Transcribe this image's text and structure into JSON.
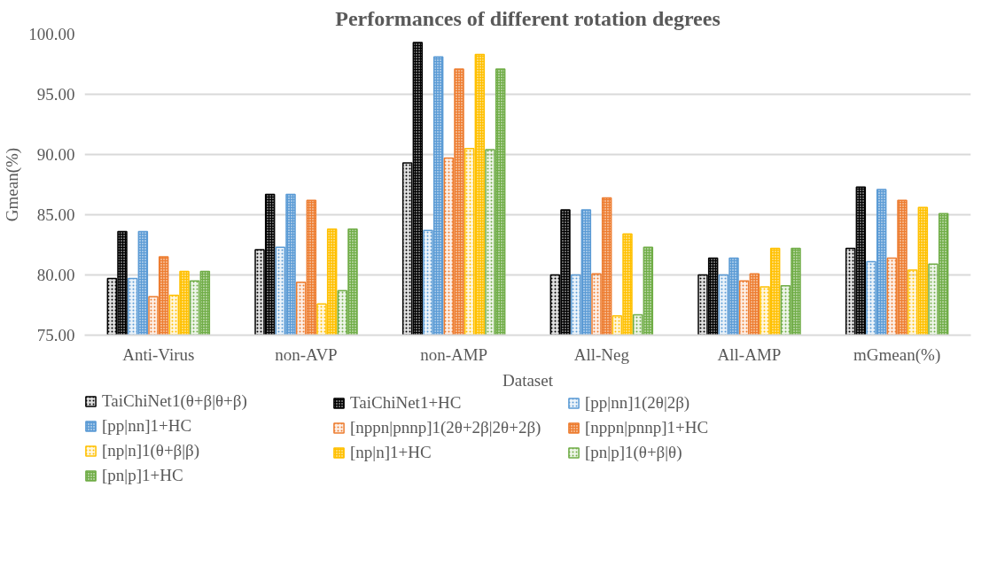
{
  "chart_data": {
    "type": "bar",
    "title": "Performances of different rotation degrees",
    "xlabel": "Dataset",
    "ylabel": "Gmean(%)",
    "categories": [
      "Anti-Virus",
      "non-AVP",
      "non-AMP",
      "All-Neg",
      "All-AMP",
      "mGmean(%)"
    ],
    "ylim": [
      75,
      100
    ],
    "yticks": [
      {
        "value": 75,
        "label": "75.00"
      },
      {
        "value": 80,
        "label": "80.00"
      },
      {
        "value": 85,
        "label": "85.00"
      },
      {
        "value": 90,
        "label": "90.00"
      },
      {
        "value": 95,
        "label": "95.00"
      },
      {
        "value": 100,
        "label": "100.00"
      }
    ],
    "grid": "y",
    "legend": "bottom",
    "series": [
      {
        "name": "TaiChiNet1(θ+β|θ+β)",
        "color": "#000000",
        "values": [
          79.7,
          82.1,
          89.3,
          80.0,
          80.0,
          82.2
        ]
      },
      {
        "name": "TaiChiNet1+HC",
        "color": "#000000",
        "values": [
          83.6,
          86.7,
          99.3,
          85.4,
          81.4,
          87.3
        ]
      },
      {
        "name": "[pp|nn]1(2θ|2β)",
        "color": "#5b9bd5",
        "values": [
          79.7,
          82.3,
          83.7,
          80.0,
          80.0,
          81.1
        ]
      },
      {
        "name": "[pp|nn]1+HC",
        "color": "#5b9bd5",
        "values": [
          83.6,
          86.7,
          98.1,
          85.4,
          81.4,
          87.1
        ]
      },
      {
        "name": "[nppn|pnnp]1(2θ+2β|2θ+2β)",
        "color": "#ed7d31",
        "values": [
          78.2,
          79.4,
          89.7,
          80.1,
          79.5,
          81.4
        ]
      },
      {
        "name": "[nppn|pnnp]1+HC",
        "color": "#ed7d31",
        "values": [
          81.5,
          86.2,
          97.1,
          86.4,
          80.1,
          86.2
        ]
      },
      {
        "name": "[np|n]1(θ+β|β)",
        "color": "#ffc000",
        "values": [
          78.3,
          77.6,
          90.5,
          76.6,
          79.0,
          80.4
        ]
      },
      {
        "name": "[np|n]1+HC",
        "color": "#ffc000",
        "values": [
          80.3,
          83.8,
          98.3,
          83.4,
          82.2,
          85.6
        ]
      },
      {
        "name": "[pn|p]1(θ+β|θ)",
        "color": "#70ad47",
        "values": [
          79.5,
          78.7,
          90.4,
          76.7,
          79.1,
          80.9
        ]
      },
      {
        "name": "[pn|p]1+HC",
        "color": "#70ad47",
        "values": [
          80.3,
          83.8,
          97.1,
          82.3,
          82.2,
          85.1
        ]
      }
    ]
  }
}
